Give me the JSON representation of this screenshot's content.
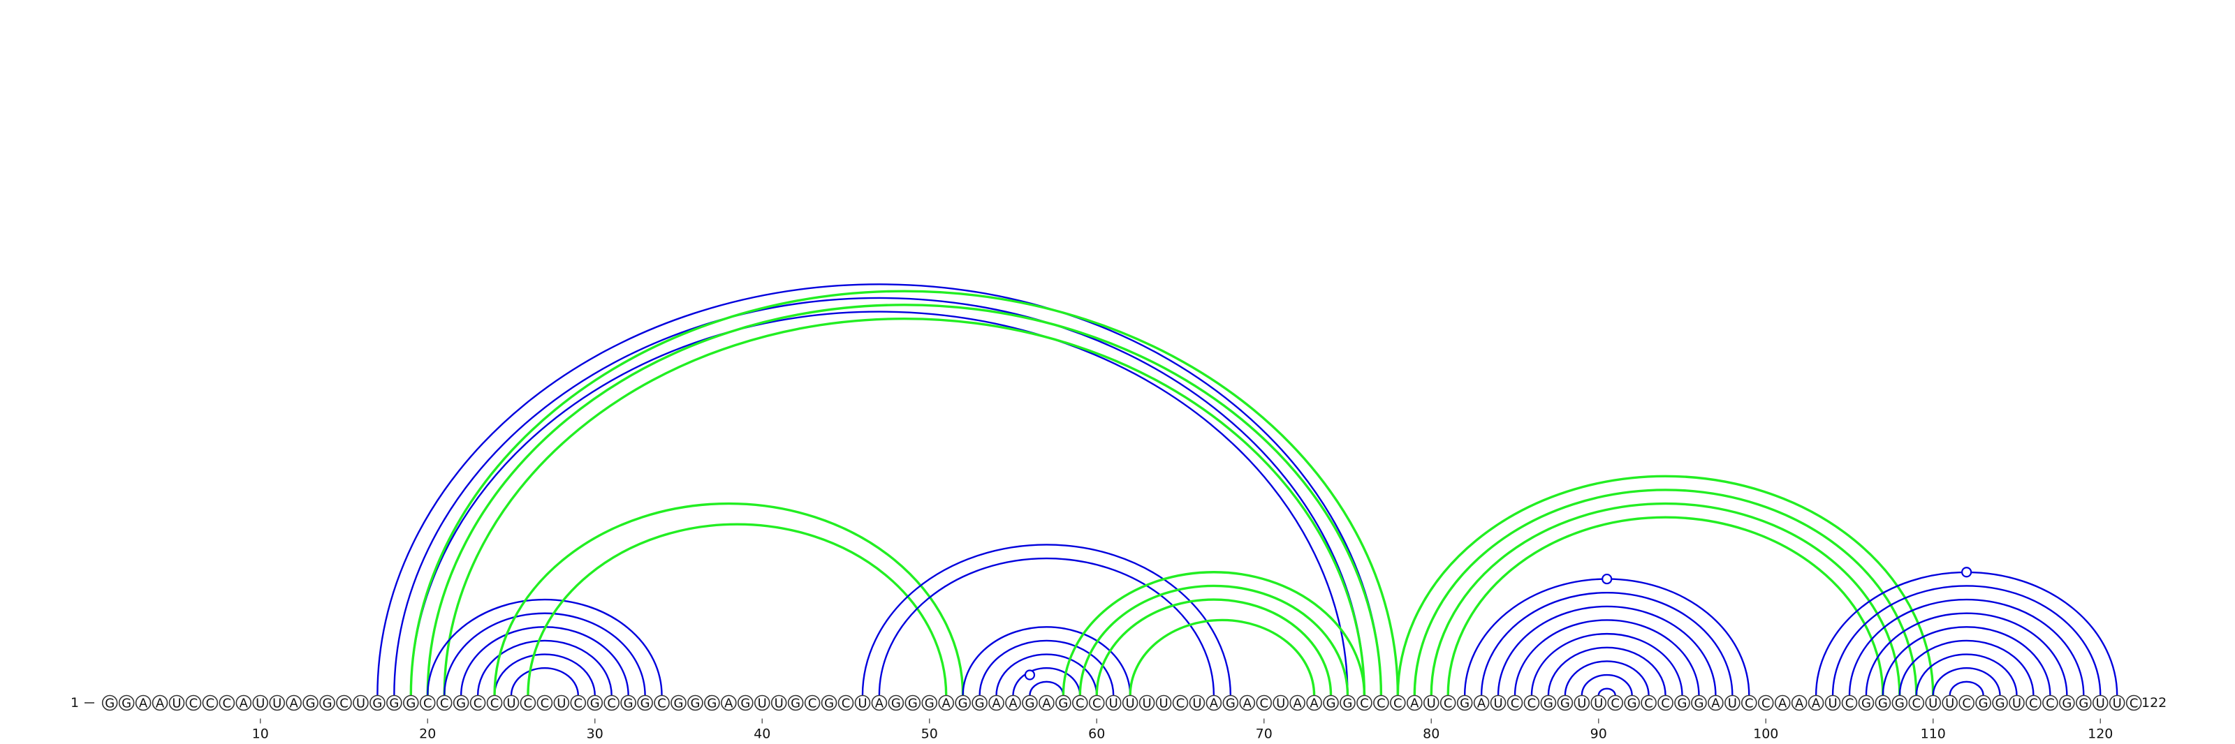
{
  "sequence": "GGAAUCCCAUUAGGCUGGGCCGCCUCCUCGCGGCGGGAGUUGCGCUAGGGAGGAAGAGCCUUUUCUAGACUAAGGCCCAUCGAUCCGGUUCGCCGGAUCCAAAUCGGGCUUCGGUCCGGUUC",
  "start_label": "1",
  "end_label": "122",
  "tick_labels": [
    "10",
    "20",
    "30",
    "40",
    "50",
    "60",
    "70",
    "80",
    "90",
    "100",
    "110",
    "120"
  ],
  "colors": {
    "structure_a": "#0000dd",
    "structure_b": "#22ee22",
    "nucleotide_outline": "#333333",
    "text": "#111111"
  },
  "arc_groups": [
    {
      "structure": "structure_a",
      "pairs": [
        [
          17,
          77
        ],
        [
          18,
          76
        ],
        [
          19,
          75
        ]
      ]
    },
    {
      "structure": "structure_b",
      "pairs": [
        [
          19,
          78
        ],
        [
          20,
          77
        ],
        [
          21,
          76
        ]
      ]
    },
    {
      "structure": "structure_a",
      "pairs": [
        [
          20,
          34
        ],
        [
          21,
          33
        ],
        [
          22,
          32
        ],
        [
          23,
          31
        ],
        [
          24,
          30
        ],
        [
          25,
          29
        ]
      ]
    },
    {
      "structure": "structure_b",
      "pairs": [
        [
          24,
          52
        ],
        [
          26,
          51
        ]
      ]
    },
    {
      "structure": "structure_a",
      "pairs": [
        [
          46,
          68
        ],
        [
          47,
          67
        ]
      ]
    },
    {
      "structure": "structure_a",
      "pairs": [
        [
          52,
          62
        ],
        [
          53,
          61
        ],
        [
          54,
          60
        ],
        [
          55,
          59
        ],
        [
          56,
          58
        ]
      ]
    },
    {
      "structure": "structure_b",
      "pairs": [
        [
          58,
          76
        ],
        [
          59,
          75
        ],
        [
          60,
          74
        ],
        [
          62,
          73
        ]
      ]
    },
    {
      "structure": "structure_b",
      "pairs": [
        [
          78,
          110
        ],
        [
          79,
          109
        ],
        [
          80,
          108
        ],
        [
          81,
          107
        ]
      ]
    },
    {
      "structure": "structure_a",
      "pairs": [
        [
          82,
          99
        ],
        [
          83,
          98
        ],
        [
          84,
          97
        ],
        [
          85,
          96
        ],
        [
          86,
          95
        ],
        [
          87,
          94
        ],
        [
          88,
          93
        ],
        [
          89,
          92
        ],
        [
          90,
          91
        ]
      ]
    },
    {
      "structure": "structure_a",
      "pairs": [
        [
          103,
          121
        ],
        [
          104,
          120
        ],
        [
          105,
          119
        ],
        [
          106,
          118
        ],
        [
          107,
          117
        ],
        [
          108,
          116
        ],
        [
          109,
          115
        ],
        [
          110,
          114
        ],
        [
          111,
          113
        ]
      ]
    }
  ],
  "loop_markers": [
    {
      "structure": "structure_a",
      "position": 56
    },
    {
      "structure": "structure_a",
      "position": 90.5
    },
    {
      "structure": "structure_a",
      "position": 112
    }
  ]
}
